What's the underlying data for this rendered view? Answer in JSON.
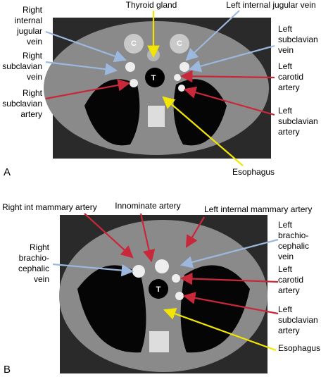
{
  "panels": [
    {
      "letter": "A",
      "image_marks": [
        "C",
        "C",
        "T"
      ],
      "labels": [
        {
          "lines": [
            "Thyroid gland"
          ]
        },
        {
          "lines": [
            "Left internal jugular vein"
          ]
        },
        {
          "lines": [
            "Right",
            "internal",
            "jugular",
            "vein"
          ]
        },
        {
          "lines": [
            "Right",
            "subclavian",
            "vein"
          ]
        },
        {
          "lines": [
            "Right",
            "subclavian",
            "artery"
          ]
        },
        {
          "lines": [
            "Left",
            "subclavian",
            "vein"
          ]
        },
        {
          "lines": [
            "Left",
            "carotid",
            "artery"
          ]
        },
        {
          "lines": [
            "Left",
            "subclavian",
            "artery"
          ]
        },
        {
          "lines": [
            "Esophagus"
          ]
        }
      ]
    },
    {
      "letter": "B",
      "image_marks": [
        "T"
      ],
      "labels": [
        {
          "lines": [
            "Right int mammary artery"
          ]
        },
        {
          "lines": [
            "Innominate artery"
          ]
        },
        {
          "lines": [
            "Left internal mammary artery"
          ]
        },
        {
          "lines": [
            "Right",
            "brachio-",
            "cephalic",
            "vein"
          ]
        },
        {
          "lines": [
            "Left",
            "brachio-",
            "cephalic",
            "vein"
          ]
        },
        {
          "lines": [
            "Left",
            "carotid",
            "artery"
          ]
        },
        {
          "lines": [
            "Left",
            "subclavian",
            "artery"
          ]
        },
        {
          "lines": [
            "Esophagus"
          ]
        }
      ]
    }
  ]
}
